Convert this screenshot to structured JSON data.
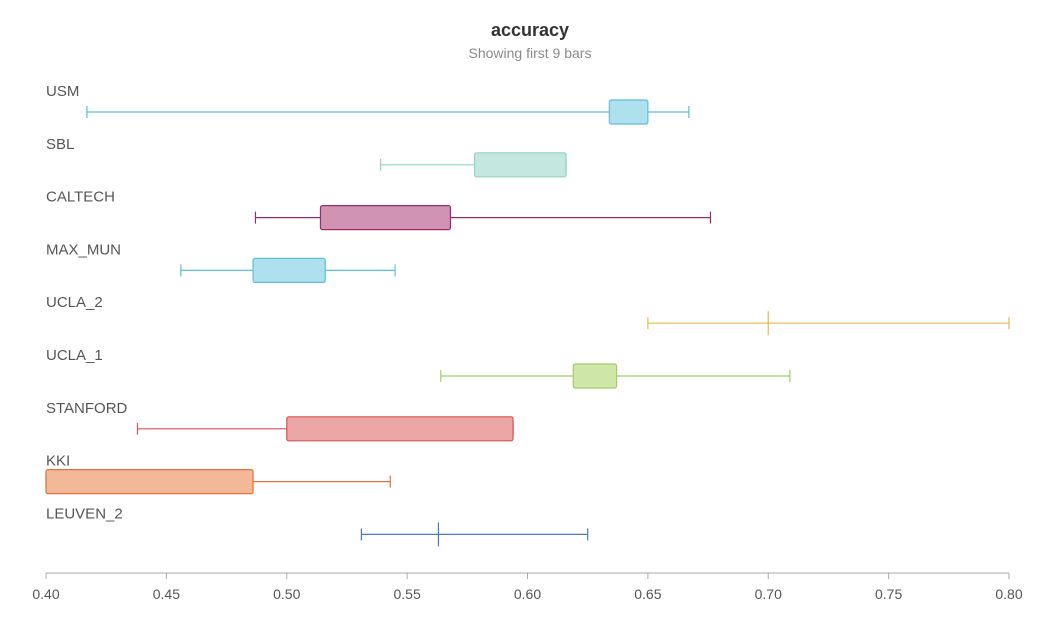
{
  "chart_data": {
    "type": "boxplot",
    "title": "accuracy",
    "subtitle": "Showing first 9 bars",
    "xlim": [
      0.4,
      0.8
    ],
    "xticks": [
      "0.40",
      "0.45",
      "0.50",
      "0.55",
      "0.60",
      "0.65",
      "0.70",
      "0.75",
      "0.80"
    ],
    "series": [
      {
        "name": "USM",
        "color": "#5bc0d8",
        "fill": "#aee0ee",
        "min": 0.417,
        "q1": 0.634,
        "median": 0.642,
        "q3": 0.65,
        "max": 0.667
      },
      {
        "name": "SBL",
        "color": "#8fd3c4",
        "fill": "#c4e8e0",
        "min": 0.539,
        "q1": 0.578,
        "median": 0.597,
        "q3": 0.616,
        "max": 0.616
      },
      {
        "name": "CALTECH",
        "color": "#9a2c6c",
        "fill": "#d093b4",
        "min": 0.487,
        "q1": 0.514,
        "median": 0.541,
        "q3": 0.568,
        "max": 0.676
      },
      {
        "name": "MAX_MUN",
        "color": "#5bc0d8",
        "fill": "#aee0ee",
        "min": 0.456,
        "q1": 0.486,
        "median": 0.5,
        "q3": 0.516,
        "max": 0.545
      },
      {
        "name": "UCLA_2",
        "color": "#e8b84a",
        "fill": "#f5dfa4",
        "min": 0.65,
        "q1": 0.7,
        "median": 0.7,
        "q3": 0.7,
        "max": 0.8
      },
      {
        "name": "UCLA_1",
        "color": "#9ccf63",
        "fill": "#cfe6a9",
        "min": 0.564,
        "q1": 0.619,
        "median": 0.628,
        "q3": 0.637,
        "max": 0.709
      },
      {
        "name": "STANFORD",
        "color": "#d9534f",
        "fill": "#eba6a6",
        "min": 0.438,
        "q1": 0.5,
        "median": 0.547,
        "q3": 0.594,
        "max": 0.594
      },
      {
        "name": "KKI",
        "color": "#e2703a",
        "fill": "#f3b897",
        "min": 0.4,
        "q1": 0.4,
        "median": 0.443,
        "q3": 0.486,
        "max": 0.543
      },
      {
        "name": "LEUVEN_2",
        "color": "#4a78d0",
        "fill": "#a9c0ec",
        "min": 0.531,
        "q1": 0.563,
        "median": 0.563,
        "q3": 0.563,
        "max": 0.625
      }
    ]
  }
}
